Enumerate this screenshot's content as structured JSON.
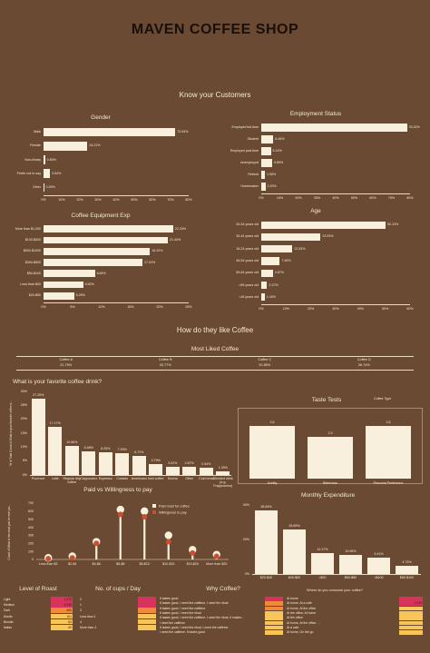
{
  "page": {
    "title": "MAVEN COFFEE SHOP",
    "section1": "Know your Customers",
    "section2": "How do they like Coffee"
  },
  "colors": {
    "background": "#6b4a33",
    "bar": "#f8f0dc",
    "accent": "#c9502f",
    "heat_high": "#d8335a",
    "heat_mid": "#f08a3a",
    "heat_low": "#f7c55a"
  },
  "chart_data": [
    {
      "id": "gender",
      "type": "bar",
      "orientation": "horizontal",
      "title": "Gender",
      "categories": [
        "Male",
        "Female",
        "Non-binary",
        "Prefer not to say",
        "Other"
      ],
      "values": [
        72.64,
        24.21,
        0.8,
        3.54,
        0.26
      ],
      "labels": [
        "72.64%",
        "24.21%",
        "0.80%",
        "3.54%",
        "0.26%"
      ],
      "ticks": [
        "0%",
        "10%",
        "20%",
        "30%",
        "40%",
        "50%",
        "60%",
        "70%",
        "80%"
      ],
      "xlim": [
        0,
        80
      ]
    },
    {
      "id": "employment",
      "type": "bar",
      "orientation": "horizontal",
      "title": "Employment Status",
      "categories": [
        "Employed full-time",
        "Student",
        "Employed part-time",
        "Unemployed",
        "Retired",
        "Homemaker"
      ],
      "values": [
        78.32,
        6.46,
        5.14,
        5.89,
        1.95,
        2.2
      ],
      "labels": [
        "78.32%",
        "6.46%",
        "5.14%",
        "5.89%",
        "1.95%",
        "2.20%"
      ],
      "ticks": [
        "0%",
        "10%",
        "20%",
        "30%",
        "40%",
        "50%",
        "60%",
        "70%",
        "80%"
      ],
      "xlim": [
        0,
        80
      ]
    },
    {
      "id": "equipment",
      "type": "bar",
      "orientation": "horizontal",
      "title": "Coffee Equipment Exp",
      "categories": [
        "More than $1,000",
        "$100-$300",
        "$500-$1000",
        "$300-$500",
        "$50-$100",
        "Less than $20",
        "$20-$50"
      ],
      "values": [
        22.33,
        21.4,
        18.32,
        17.03,
        8.84,
        6.82,
        5.26
      ],
      "labels": [
        "22.33%",
        "21.40%",
        "18.32%",
        "17.03%",
        "8.84%",
        "6.82%",
        "5.26%"
      ],
      "ticks": [
        "0%",
        "5%",
        "10%",
        "15%",
        "20%",
        "25%"
      ],
      "xlim": [
        0,
        25
      ]
    },
    {
      "id": "age",
      "type": "bar",
      "orientation": "horizontal",
      "title": "Age",
      "categories": [
        "25-34 years old",
        "35-44 years old",
        "18-24 years old",
        "45-54 years old",
        "55-64 years old",
        ">65 years old",
        "<18 years old"
      ],
      "values": [
        50.13,
        23.93,
        12.53,
        7.45,
        4.67,
        2.37,
        1.4
      ],
      "labels": [
        "50.13%",
        "23.93%",
        "12.53%",
        "7.45%",
        "4.67%",
        "2.37%",
        "1.40%"
      ],
      "ticks": [
        "0%",
        "10%",
        "20%",
        "30%",
        "40%",
        "50%",
        "60%"
      ],
      "xlim": [
        0,
        60
      ]
    },
    {
      "id": "most_liked",
      "type": "table",
      "title": "Most Liked Coffee",
      "columns": [
        "Coffee A",
        "Coffee B",
        "Coffee C",
        "Coffee D"
      ],
      "values": [
        "21.75%",
        "20.77%",
        "20.85%",
        "36.74%"
      ]
    },
    {
      "id": "favorite_drink",
      "type": "bar",
      "title": "What is your favorite coffee drink?",
      "ylabel": "% of Total Count of What is your favorite coffee d...",
      "categories": [
        "Pourover",
        "Latte",
        "Regular drip coffee",
        "Cappuccino",
        "Espresso",
        "Cortado",
        "Americano",
        "Iced coffee",
        "Mocha",
        "Other",
        "Cold brew",
        "Blended drink (e.g. Frappuccino)"
      ],
      "values": [
        27.25,
        17.17,
        10.56,
        8.48,
        8.25,
        7.93,
        6.72,
        3.79,
        3.02,
        2.87,
        2.54,
        1.39
      ],
      "labels": [
        "27.25%",
        "17.17%",
        "10.56%",
        "8.48%",
        "8.25%",
        "7.93%",
        "6.72%",
        "3.79%",
        "3.02%",
        "2.87%",
        "2.54%",
        "1.39%"
      ],
      "ticks": [
        "0%",
        "5%",
        "10%",
        "15%",
        "20%",
        "25%",
        "30%"
      ],
      "ylim": [
        0,
        30
      ]
    },
    {
      "id": "taste_tests",
      "type": "bar",
      "title": "Taste Tests",
      "legend": "Coffee Type",
      "categories": [
        "Acidity",
        "Bitterness",
        "Personal Preference"
      ],
      "values": [
        3.6,
        2.9,
        3.6
      ],
      "labels": [
        "3.6",
        "2.9",
        "3.6"
      ]
    },
    {
      "id": "paid_vs_willingness",
      "type": "line",
      "title": "Paid vs Willingness to pay",
      "ylabel": "Count of What is the most you've ever pa...",
      "categories": [
        "Less than $2",
        "$2-$4",
        "$4-$6",
        "$6-$8",
        "$8-$10",
        "$10-$15",
        "$15-$20",
        "More than $20"
      ],
      "ticks": [
        "0",
        "100",
        "200",
        "300",
        "400",
        "500",
        "600",
        "700"
      ],
      "ylim": [
        0,
        700
      ],
      "series": [
        {
          "name": "Paid most for coffee",
          "values": [
            20,
            40,
            220,
            620,
            600,
            300,
            120,
            60
          ]
        },
        {
          "name": "Willingness to pay",
          "values": [
            10,
            20,
            200,
            560,
            530,
            220,
            80,
            40
          ]
        }
      ]
    },
    {
      "id": "monthly_expenditure",
      "type": "bar",
      "title": "Monthly Expenditure",
      "categories": [
        "$20-$40",
        "$40-$60",
        "<$20",
        "$60-$80",
        ">$100",
        "$80-$100"
      ],
      "values": [
        36.84,
        25.89,
        12.17,
        10.96,
        9.41,
        4.73
      ],
      "labels": [
        "36.84%",
        "25.89%",
        "12.17%",
        "10.96%",
        "9.41%",
        "4.73%"
      ],
      "ticks": [
        "0%",
        "20%",
        "40%"
      ],
      "ylim": [
        0,
        40
      ]
    },
    {
      "id": "level_of_roast",
      "type": "heatmap",
      "title": "Level of Roast",
      "categories": [
        "Light",
        "Medium",
        "Dark",
        "Nordic",
        "Blonde",
        "Italian"
      ],
      "values": [
        1170,
        1049,
        405,
        101,
        83,
        60
      ],
      "labels": [
        "1,170",
        "1,049",
        "405",
        "101",
        "83",
        "60"
      ]
    },
    {
      "id": "cups_per_day",
      "type": "heatmap",
      "title": "No. of cups / Day",
      "categories": [
        "2",
        "1",
        "3",
        "Less than 1",
        "4",
        "More than 4"
      ],
      "values": [
        1400,
        1200,
        600,
        300,
        150,
        60
      ]
    },
    {
      "id": "why_coffee",
      "type": "heatmap",
      "title": "Why Coffee?",
      "categories": [
        "It tastes good",
        "It tastes good, I need the caffeine, I need the ritual",
        "It tastes good, I need the caffeine",
        "It tastes good, I need the ritual",
        "It tastes good, I need the caffeine, I need the ritual, It makes...",
        "I need the caffeine",
        "It tastes good, I need the ritual, I need the caffeine",
        "I need the caffeine, It tastes good"
      ],
      "values": [
        900,
        500,
        320,
        250,
        160,
        100,
        80,
        60
      ]
    },
    {
      "id": "where_consume",
      "type": "heatmap",
      "title": "Where do you consume your coffee?",
      "categories": [
        "At home",
        "At home, At a cafe",
        "At home, At the office",
        "At the office, At home",
        "At the office",
        "At home, At the office, ...",
        "At a cafe",
        "At home, On the go"
      ],
      "values": [
        1000,
        1449,
        380,
        300,
        200,
        150,
        120,
        80
      ],
      "labels": [
        "",
        "1,449",
        "",
        "",
        "",
        "",
        "",
        ""
      ]
    }
  ]
}
